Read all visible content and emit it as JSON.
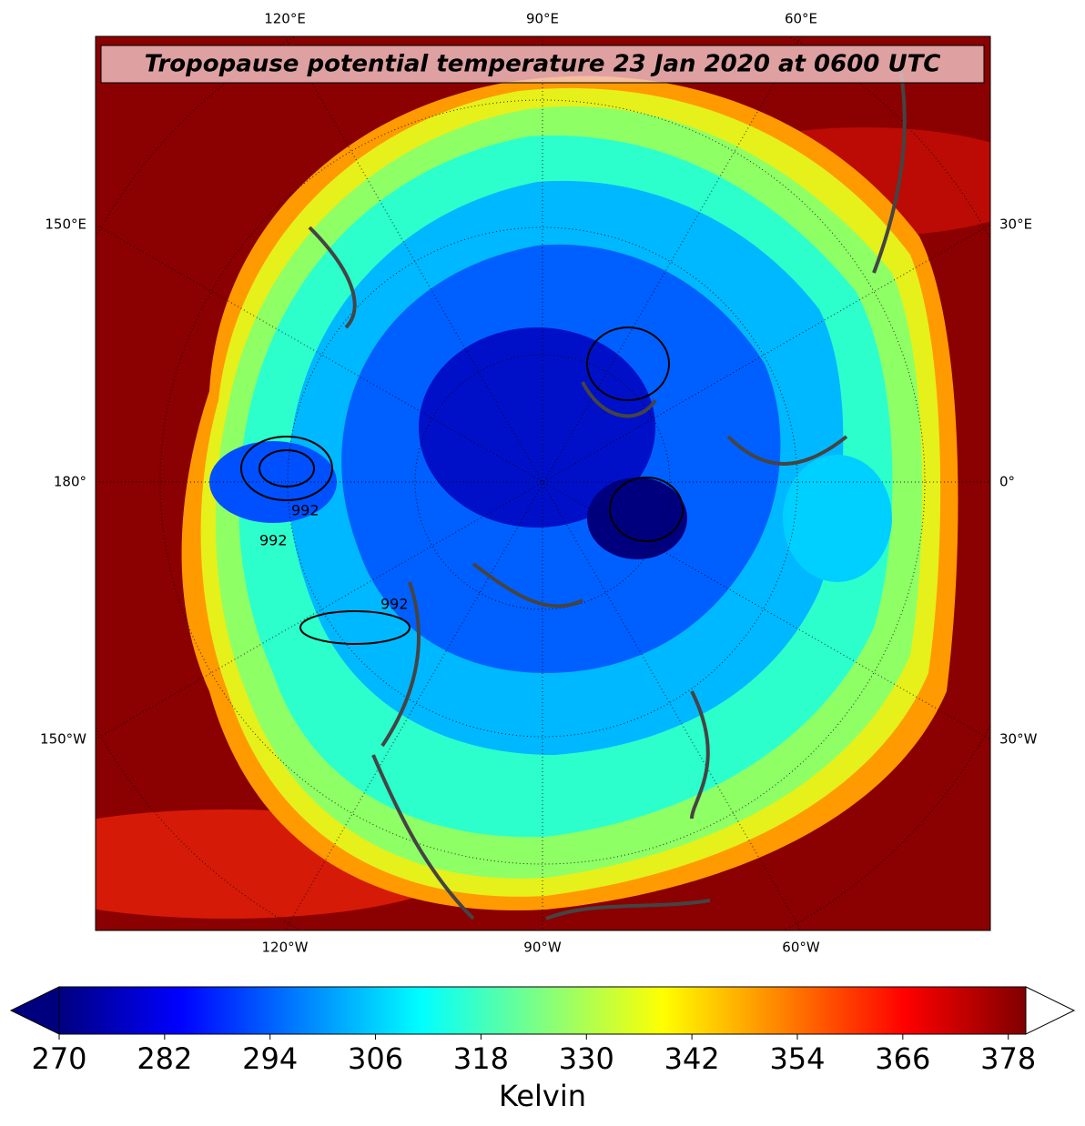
{
  "title": "Tropopause potential temperature 23 Jan 2020 at 0600 UTC",
  "map": {
    "top_labels": [
      "120°E",
      "90°E",
      "60°E"
    ],
    "bottom_labels": [
      "120°W",
      "90°W",
      "60°W"
    ],
    "left_labels": [
      "150°E",
      "180°",
      "150°W"
    ],
    "right_labels": [
      "30°E",
      "0°",
      "30°W"
    ],
    "contour_labels": [
      "992",
      "992",
      "992"
    ]
  },
  "colorbar": {
    "colormap": "jet",
    "lim": [
      270,
      380
    ],
    "ticks": [
      270,
      282,
      294,
      306,
      318,
      330,
      342,
      354,
      366,
      378
    ],
    "label": "Kelvin",
    "extend_min_color": "#00007f",
    "extend_max_color": "#ffffff"
  }
}
